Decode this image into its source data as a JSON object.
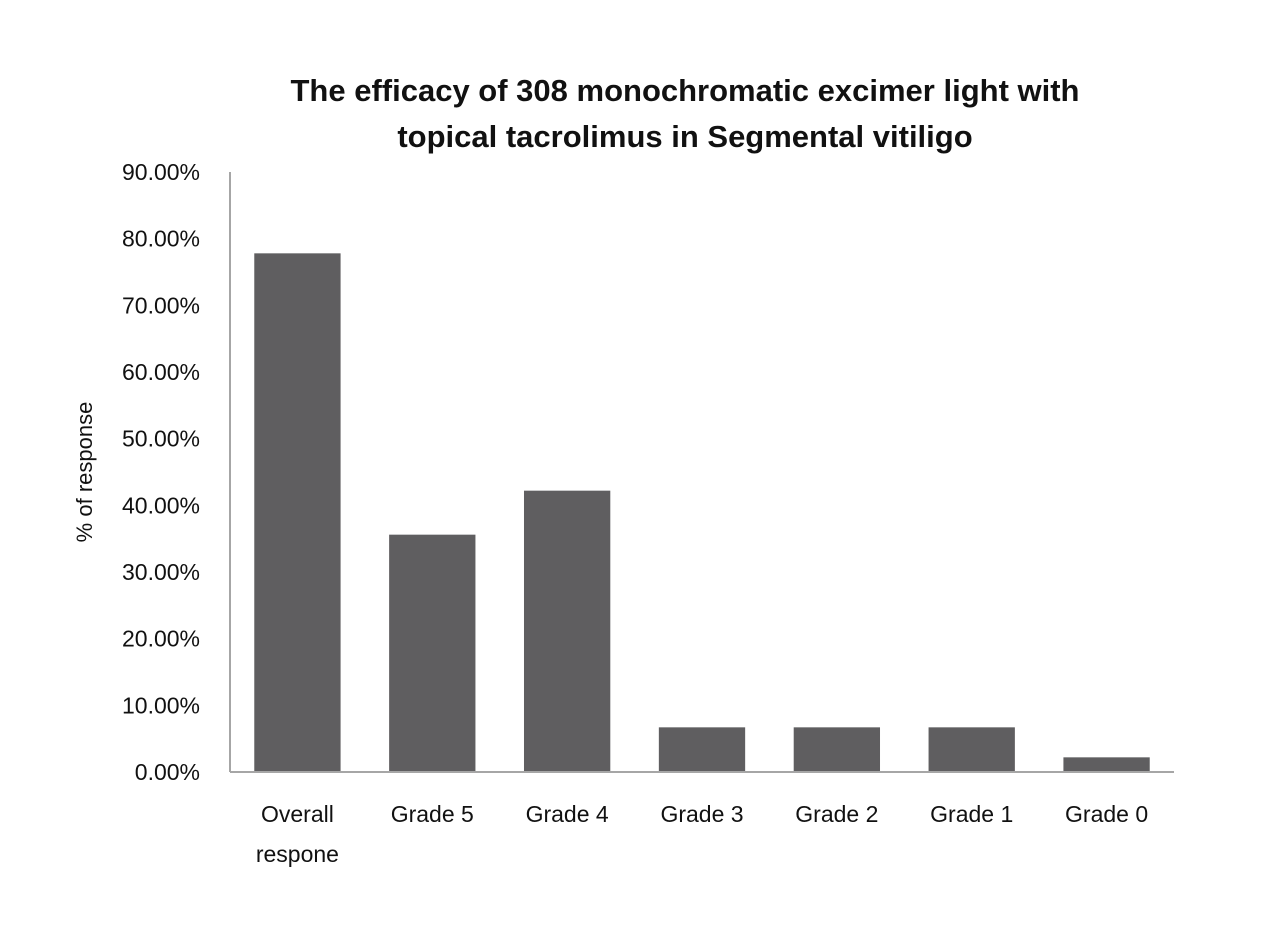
{
  "chart_data": {
    "type": "bar",
    "title": "The efficacy of 308 monochromatic excimer light with\ntopical tacrolimus in Segmental vitiligo",
    "xlabel": "",
    "ylabel": "% of response",
    "categories": [
      "Overall\nrespone",
      "Grade 5",
      "Grade 4",
      "Grade 3",
      "Grade 2",
      "Grade 1",
      "Grade 0"
    ],
    "values": [
      0.778,
      0.356,
      0.422,
      0.067,
      0.067,
      0.067,
      0.022
    ],
    "ylim": [
      0,
      0.9
    ],
    "yticks": [
      "0.00%",
      "10.00%",
      "20.00%",
      "30.00%",
      "40.00%",
      "50.00%",
      "60.00%",
      "70.00%",
      "80.00%",
      "90.00%"
    ],
    "grid": false,
    "legend": "none",
    "bar_color": "#5f5e60",
    "axis_color": "#a6a6a6"
  }
}
